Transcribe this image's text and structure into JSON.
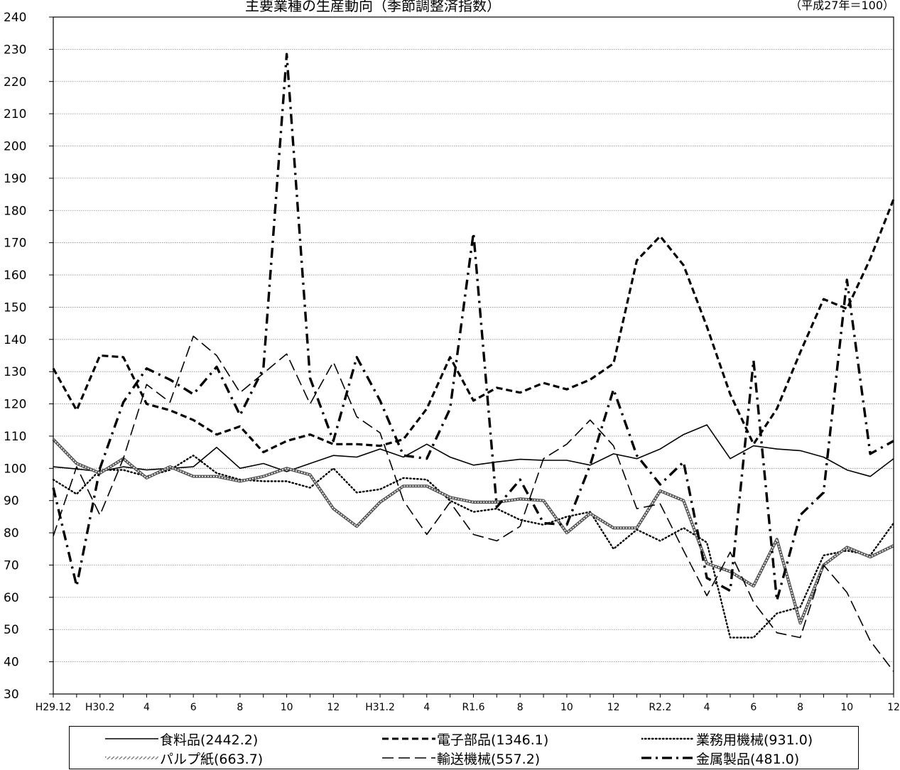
{
  "header": {
    "title": "主要業種の生産動向（季節調整済指数）",
    "unit": "（平成27年＝100）"
  },
  "chart_data": {
    "type": "line",
    "title": "主要業種の生産動向（季節調整済指数）",
    "unit_note": "（平成27年＝100）",
    "xlabel": "",
    "ylabel": "",
    "ylim": [
      30,
      240
    ],
    "yticks": [
      30,
      40,
      50,
      60,
      70,
      80,
      90,
      100,
      110,
      120,
      130,
      140,
      150,
      160,
      170,
      180,
      190,
      200,
      210,
      220,
      230,
      240
    ],
    "grid": true,
    "legend_position": "bottom",
    "x": [
      "H29.12",
      "H30.1",
      "H30.2",
      "3",
      "4",
      "5",
      "6",
      "7",
      "8",
      "9",
      "10",
      "11",
      "12",
      "H31.1",
      "H31.2",
      "3",
      "4",
      "5",
      "R1.6",
      "7",
      "8",
      "9",
      "10",
      "11",
      "12",
      "R2.1",
      "R2.2",
      "3",
      "4",
      "5",
      "6",
      "7",
      "8",
      "9",
      "10",
      "11",
      "12"
    ],
    "x_tick_labels": [
      "H29.12",
      "",
      "H30.2",
      "",
      "4",
      "",
      "6",
      "",
      "8",
      "",
      "10",
      "",
      "12",
      "",
      "H31.2",
      "",
      "4",
      "",
      "R1.6",
      "",
      "8",
      "",
      "10",
      "",
      "12",
      "",
      "R2.2",
      "",
      "4",
      "",
      "6",
      "",
      "8",
      "",
      "10",
      "",
      "12"
    ],
    "series": [
      {
        "name": "食料品(2442.2)",
        "style": "solid",
        "values": [
          100.5,
          99.8,
          99.0,
          100.5,
          99.5,
          100.0,
          100.5,
          106.5,
          100.0,
          101.5,
          99.0,
          101.5,
          104.0,
          103.5,
          106.0,
          103.5,
          107.5,
          103.5,
          101.0,
          102.0,
          102.8,
          102.5,
          102.5,
          101.0,
          104.5,
          103.0,
          106.0,
          110.5,
          113.5,
          103.0,
          107.0,
          106.0,
          105.5,
          103.5,
          99.5,
          97.5,
          103.0
        ]
      },
      {
        "name": "電子部品(1346.1)",
        "style": "dash-bold",
        "values": [
          131.0,
          118.0,
          135.0,
          134.5,
          120.0,
          118.0,
          115.0,
          110.5,
          113.0,
          105.0,
          108.5,
          110.5,
          107.5,
          107.5,
          107.0,
          109.0,
          118.5,
          134.5,
          121.0,
          125.0,
          123.5,
          126.5,
          124.5,
          127.5,
          132.5,
          164.5,
          172.0,
          163.0,
          144.0,
          123.0,
          107.5,
          118.5,
          136.0,
          152.5,
          149.5,
          165.0,
          183.5
        ]
      },
      {
        "name": "業務用機械(931.0)",
        "style": "dotted",
        "values": [
          96.5,
          92.0,
          99.5,
          99.5,
          97.5,
          99.5,
          104.0,
          98.5,
          96.5,
          96.0,
          96.0,
          94.0,
          100.0,
          92.5,
          93.5,
          97.0,
          96.5,
          90.0,
          86.5,
          87.5,
          84.0,
          82.5,
          85.0,
          86.5,
          75.0,
          81.0,
          77.5,
          81.5,
          77.0,
          47.5,
          47.5,
          55.0,
          57.0,
          73.0,
          74.5,
          73.0,
          83.0
        ]
      },
      {
        "name": "パルプ紙(663.7)",
        "style": "hatched",
        "values": [
          109.0,
          101.5,
          98.5,
          103.0,
          97.0,
          100.5,
          97.5,
          97.5,
          96.0,
          97.5,
          100.0,
          98.0,
          87.5,
          82.0,
          89.5,
          94.5,
          94.5,
          91.0,
          89.5,
          89.5,
          90.5,
          90.0,
          80.0,
          86.0,
          81.5,
          81.5,
          93.0,
          90.0,
          70.5,
          68.0,
          63.5,
          78.0,
          52.0,
          70.0,
          75.5,
          72.5,
          76.0
        ]
      },
      {
        "name": "輸送機械(557.2)",
        "style": "long-dash",
        "values": [
          79.0,
          100.5,
          85.5,
          103.0,
          126.0,
          120.5,
          141.0,
          135.0,
          123.5,
          129.5,
          135.5,
          120.0,
          133.0,
          116.0,
          111.0,
          90.0,
          79.5,
          89.5,
          79.5,
          77.5,
          82.0,
          103.0,
          107.5,
          115.0,
          107.0,
          87.5,
          89.0,
          74.5,
          60.5,
          74.0,
          58.5,
          49.0,
          47.5,
          70.0,
          61.5,
          46.5,
          37.0
        ]
      },
      {
        "name": "金属製品(481.0)",
        "style": "dash-dot-bold",
        "values": [
          94.0,
          63.5,
          100.0,
          120.5,
          131.0,
          127.5,
          123.0,
          131.5,
          116.5,
          131.0,
          228.5,
          128.0,
          108.5,
          134.5,
          121.0,
          104.0,
          103.0,
          118.5,
          173.0,
          88.0,
          96.5,
          83.0,
          82.5,
          101.0,
          124.5,
          104.0,
          95.0,
          102.0,
          66.0,
          62.0,
          133.5,
          59.0,
          85.5,
          92.5,
          158.5,
          104.5,
          108.5
        ]
      }
    ]
  },
  "legend": {
    "items": [
      {
        "label": "食料品(2442.2)",
        "style": "solid"
      },
      {
        "label": "電子部品(1346.1)",
        "style": "dash-bold"
      },
      {
        "label": "業務用機械(931.0)",
        "style": "dotted"
      },
      {
        "label": "パルプ紙(663.7)",
        "style": "hatched"
      },
      {
        "label": "輸送機械(557.2)",
        "style": "long-dash"
      },
      {
        "label": "金属製品(481.0)",
        "style": "dash-dot-bold"
      }
    ]
  }
}
